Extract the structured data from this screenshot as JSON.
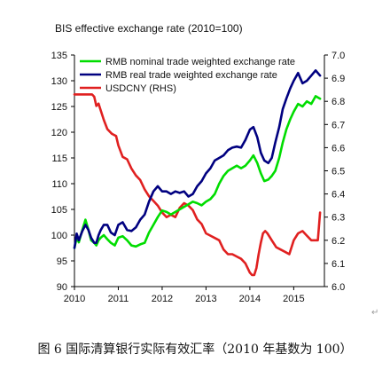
{
  "chart_data": {
    "type": "line",
    "title": "BIS effective exchange rate (2010=100)",
    "x_ticks": [
      "2010",
      "2011",
      "2012",
      "2013",
      "2014",
      "2015"
    ],
    "xlim": [
      2010,
      2015.7
    ],
    "ylim_left": [
      90,
      135
    ],
    "ylim_right": [
      6.0,
      7.0
    ],
    "yticks_left": [
      "90",
      "95",
      "100",
      "105",
      "110",
      "115",
      "120",
      "125",
      "130",
      "135"
    ],
    "yticks_right": [
      "6.0",
      "6.1",
      "6.2",
      "6.3",
      "6.4",
      "6.5",
      "6.6",
      "6.7",
      "6.8",
      "6.9",
      "7.0"
    ],
    "legend_position": "top-left",
    "grid": false,
    "series": [
      {
        "name": "RMB nominal trade weighted exchange rate",
        "color": "#00dd00",
        "axis": "left",
        "x": [
          2010.0,
          2010.05,
          2010.1,
          2010.18,
          2010.25,
          2010.32,
          2010.38,
          2010.45,
          2010.5,
          2010.55,
          2010.6,
          2010.67,
          2010.75,
          2010.83,
          2010.92,
          2011.0,
          2011.1,
          2011.2,
          2011.3,
          2011.4,
          2011.5,
          2011.6,
          2011.7,
          2011.8,
          2011.9,
          2012.0,
          2012.1,
          2012.2,
          2012.3,
          2012.4,
          2012.5,
          2012.6,
          2012.7,
          2012.8,
          2012.9,
          2013.0,
          2013.1,
          2013.2,
          2013.3,
          2013.4,
          2013.5,
          2013.6,
          2013.7,
          2013.8,
          2013.9,
          2014.0,
          2014.08,
          2014.17,
          2014.25,
          2014.33,
          2014.42,
          2014.5,
          2014.58,
          2014.67,
          2014.75,
          2014.83,
          2014.92,
          2015.0,
          2015.1,
          2015.2,
          2015.3,
          2015.4,
          2015.5,
          2015.6
        ],
        "y": [
          97.5,
          99.5,
          98.6,
          101.0,
          103.0,
          101.0,
          99.0,
          98.5,
          98.0,
          99.0,
          99.5,
          100.0,
          99.2,
          98.5,
          98.0,
          99.5,
          99.8,
          99.0,
          98.0,
          97.8,
          98.2,
          98.5,
          100.5,
          102.0,
          103.5,
          104.8,
          104.5,
          104.0,
          104.5,
          105.0,
          105.5,
          106.0,
          106.5,
          106.2,
          105.8,
          106.5,
          107.0,
          108.0,
          110.0,
          111.5,
          112.5,
          113.0,
          113.5,
          113.0,
          113.5,
          114.5,
          115.5,
          114.0,
          112.0,
          110.5,
          110.8,
          111.5,
          112.5,
          115.0,
          118.0,
          120.5,
          122.5,
          124.0,
          125.5,
          125.0,
          126.0,
          125.5,
          127.0,
          126.5
        ]
      },
      {
        "name": "RMB real trade weighted exchange rate",
        "color": "#000080",
        "axis": "left",
        "x": [
          2010.0,
          2010.05,
          2010.1,
          2010.18,
          2010.25,
          2010.32,
          2010.38,
          2010.45,
          2010.5,
          2010.55,
          2010.6,
          2010.67,
          2010.75,
          2010.83,
          2010.92,
          2011.0,
          2011.1,
          2011.2,
          2011.3,
          2011.4,
          2011.5,
          2011.6,
          2011.7,
          2011.8,
          2011.9,
          2012.0,
          2012.1,
          2012.2,
          2012.3,
          2012.4,
          2012.5,
          2012.6,
          2012.7,
          2012.8,
          2012.9,
          2013.0,
          2013.1,
          2013.2,
          2013.3,
          2013.4,
          2013.5,
          2013.6,
          2013.7,
          2013.8,
          2013.9,
          2014.0,
          2014.08,
          2014.17,
          2014.25,
          2014.33,
          2014.42,
          2014.5,
          2014.58,
          2014.67,
          2014.75,
          2014.83,
          2014.92,
          2015.0,
          2015.1,
          2015.2,
          2015.3,
          2015.4,
          2015.5,
          2015.6
        ],
        "y": [
          97.5,
          100.3,
          99.0,
          100.8,
          102.0,
          101.0,
          99.5,
          98.5,
          98.5,
          100.0,
          101.0,
          102.0,
          102.0,
          100.5,
          100.0,
          102.0,
          102.5,
          101.0,
          100.8,
          101.5,
          103.0,
          104.0,
          106.5,
          108.5,
          109.5,
          108.5,
          108.5,
          108.0,
          108.5,
          108.2,
          108.5,
          107.5,
          108.0,
          109.5,
          110.5,
          112.0,
          113.0,
          114.5,
          115.0,
          115.5,
          116.5,
          117.0,
          117.2,
          117.0,
          118.5,
          120.5,
          121.0,
          119.0,
          116.0,
          114.5,
          114.0,
          115.0,
          118.0,
          121.0,
          124.5,
          126.5,
          128.5,
          130.0,
          131.5,
          129.5,
          130.0,
          131.0,
          132.0,
          131.0
        ]
      },
      {
        "name": "USDCNY (RHS)",
        "color": "#e02020",
        "axis": "right",
        "x": [
          2010.0,
          2010.1,
          2010.2,
          2010.3,
          2010.4,
          2010.45,
          2010.5,
          2010.55,
          2010.6,
          2010.67,
          2010.75,
          2010.85,
          2010.95,
          2011.0,
          2011.1,
          2011.2,
          2011.3,
          2011.4,
          2011.5,
          2011.6,
          2011.7,
          2011.8,
          2011.9,
          2012.0,
          2012.1,
          2012.2,
          2012.3,
          2012.4,
          2012.5,
          2012.6,
          2012.7,
          2012.8,
          2012.9,
          2013.0,
          2013.1,
          2013.2,
          2013.3,
          2013.4,
          2013.5,
          2013.6,
          2013.7,
          2013.8,
          2013.9,
          2014.0,
          2014.05,
          2014.1,
          2014.15,
          2014.2,
          2014.25,
          2014.3,
          2014.35,
          2014.4,
          2014.5,
          2014.6,
          2014.7,
          2014.8,
          2014.9,
          2015.0,
          2015.1,
          2015.2,
          2015.3,
          2015.4,
          2015.5,
          2015.55,
          2015.6
        ],
        "y": [
          6.83,
          6.83,
          6.83,
          6.83,
          6.83,
          6.82,
          6.78,
          6.79,
          6.76,
          6.72,
          6.68,
          6.66,
          6.65,
          6.61,
          6.56,
          6.55,
          6.51,
          6.48,
          6.46,
          6.42,
          6.39,
          6.37,
          6.35,
          6.32,
          6.3,
          6.31,
          6.3,
          6.34,
          6.36,
          6.35,
          6.33,
          6.29,
          6.27,
          6.23,
          6.22,
          6.21,
          6.2,
          6.16,
          6.14,
          6.14,
          6.13,
          6.12,
          6.1,
          6.06,
          6.05,
          6.05,
          6.08,
          6.14,
          6.19,
          6.23,
          6.24,
          6.23,
          6.2,
          6.17,
          6.16,
          6.15,
          6.14,
          6.2,
          6.23,
          6.24,
          6.22,
          6.2,
          6.2,
          6.2,
          6.32
        ]
      }
    ]
  },
  "caption": "图 6  国际清算银行实际有效汇率（2010 年基数为 100）",
  "para_mark": "↵"
}
